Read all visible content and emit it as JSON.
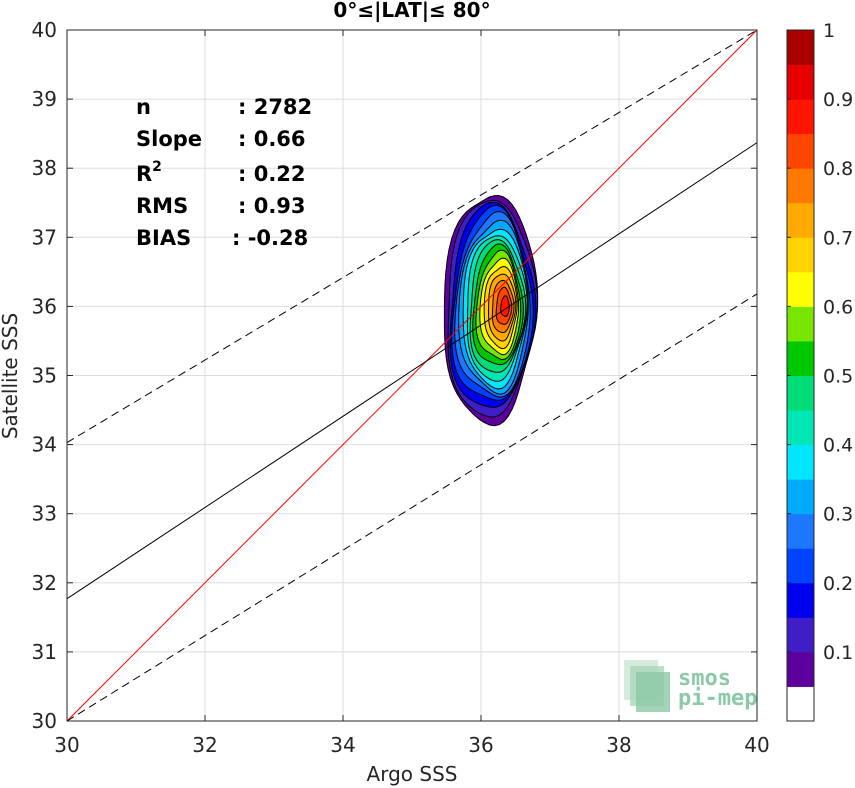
{
  "chart_data": {
    "type": "heatmap",
    "title": "0°≤|LAT|≤ 80°",
    "xlabel": "Argo SSS",
    "ylabel": "Satellite SSS",
    "xlim": [
      30,
      40
    ],
    "ylim": [
      30,
      40
    ],
    "xticks": [
      "30",
      "32",
      "34",
      "36",
      "38",
      "40"
    ],
    "yticks": [
      "30",
      "31",
      "32",
      "33",
      "34",
      "35",
      "36",
      "37",
      "38",
      "39",
      "40"
    ],
    "grid": true,
    "stats": [
      {
        "label": "n",
        "value": ": 2782"
      },
      {
        "label": "Slope",
        "value": ": 0.66"
      },
      {
        "label": "R",
        "sup": "2",
        "value": ": 0.22"
      },
      {
        "label": "RMS",
        "value": ": 0.93"
      },
      {
        "label": "BIAS",
        "value": ": -0.28"
      }
    ],
    "lines": [
      {
        "role": "one-to-one",
        "color": "#ff0000",
        "style": "solid",
        "points": [
          [
            30,
            30
          ],
          [
            40,
            40
          ]
        ]
      },
      {
        "role": "regression",
        "color": "#000000",
        "style": "solid",
        "slope": 0.66,
        "points": [
          [
            30,
            31.77
          ],
          [
            40,
            38.37
          ]
        ]
      },
      {
        "role": "upper-bound",
        "color": "#000000",
        "style": "dashed",
        "points": [
          [
            30,
            34.03
          ],
          [
            40,
            40.0
          ]
        ]
      },
      {
        "role": "lower-bound",
        "color": "#000000",
        "style": "dashed",
        "points": [
          [
            30,
            30.0
          ],
          [
            40,
            36.18
          ]
        ]
      }
    ],
    "density_contours": {
      "center": [
        36.35,
        36.0
      ],
      "outer_extent": {
        "x": [
          35.45,
          36.8
        ],
        "y": [
          34.35,
          37.65
        ]
      },
      "levels": [
        0.05,
        0.1,
        0.15,
        0.2,
        0.25,
        0.3,
        0.35,
        0.4,
        0.45,
        0.5,
        0.55,
        0.6,
        0.65,
        0.7,
        0.75,
        0.8,
        0.85,
        0.9,
        0.95
      ]
    },
    "colorbar": {
      "ticks": [
        "0.1",
        "0.2",
        "0.3",
        "0.4",
        "0.5",
        "0.6",
        "0.7",
        "0.8",
        "0.9",
        "1"
      ],
      "tick_values": [
        0.1,
        0.2,
        0.3,
        0.4,
        0.5,
        0.6,
        0.7,
        0.8,
        0.9,
        1.0
      ],
      "colors": [
        "#ffffff",
        "#5e009d",
        "#3f1ec8",
        "#0000f0",
        "#0044ff",
        "#1e78ff",
        "#00aaff",
        "#00e6ff",
        "#00e6b4",
        "#00dc78",
        "#00c800",
        "#78e600",
        "#ffff00",
        "#ffd200",
        "#ffaa00",
        "#ff7800",
        "#ff4600",
        "#ff1400",
        "#e60000",
        "#aa0000"
      ]
    },
    "logo_text": [
      "smos",
      "pi-mep"
    ]
  }
}
